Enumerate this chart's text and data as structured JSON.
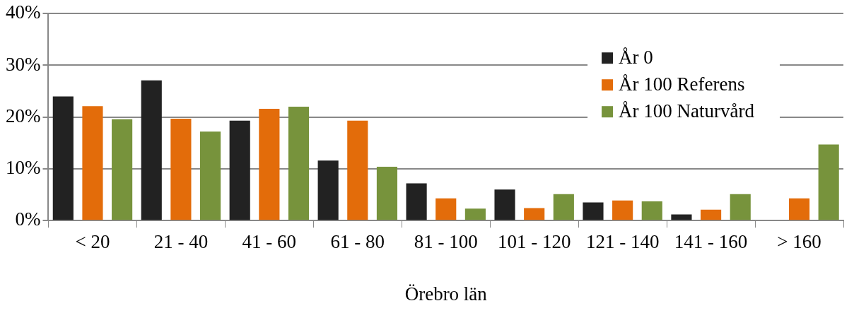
{
  "chart_data": {
    "type": "bar",
    "xlabel": "Örebro län",
    "categories": [
      "< 20",
      "21 - 40",
      "41 - 60",
      "61 - 80",
      "81 - 100",
      "101 - 120",
      "121 - 140",
      "141 - 160",
      "> 160"
    ],
    "series": [
      {
        "name": "År 0",
        "color": "#222222",
        "values": [
          24.0,
          27.1,
          19.3,
          11.6,
          7.2,
          6.0,
          3.5,
          1.2,
          null
        ]
      },
      {
        "name": "År 100 Referens",
        "color": "#e36c0a",
        "values": [
          22.1,
          19.7,
          21.6,
          19.3,
          4.3,
          2.4,
          3.9,
          2.1,
          4.3
        ]
      },
      {
        "name": "År 100 Naturvård",
        "color": "#77933c",
        "values": [
          19.6,
          17.2,
          22.0,
          10.4,
          2.3,
          5.1,
          3.7,
          5.1,
          14.7
        ]
      }
    ],
    "ylim": [
      0,
      40
    ],
    "yticks": [
      {
        "value": 0,
        "label": "0%"
      },
      {
        "value": 10,
        "label": "10%"
      },
      {
        "value": 20,
        "label": "20%"
      },
      {
        "value": 30,
        "label": "30%"
      },
      {
        "value": 40,
        "label": "40%"
      }
    ],
    "grid": "y",
    "legend": "top right"
  }
}
